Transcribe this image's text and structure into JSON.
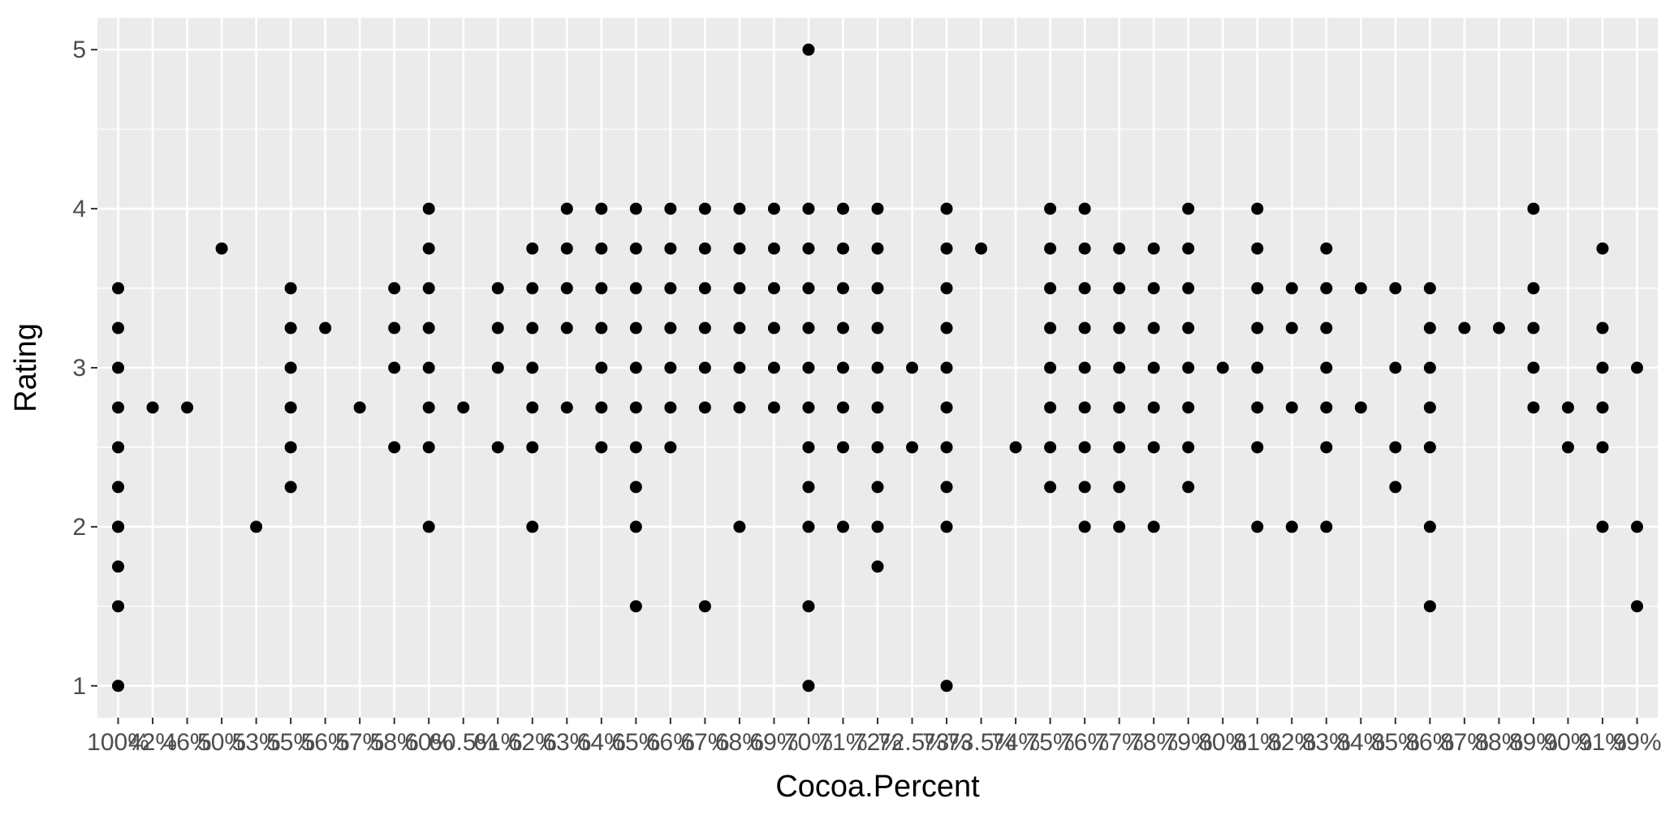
{
  "chart_data": {
    "type": "scatter",
    "title": "",
    "xlabel": "Cocoa.Percent",
    "ylabel": "Rating",
    "x_type": "categorical",
    "categories": [
      "100%",
      "42%",
      "46%",
      "50%",
      "53%",
      "55%",
      "56%",
      "57%",
      "58%",
      "60%",
      "60.5%",
      "61%",
      "62%",
      "63%",
      "64%",
      "65%",
      "66%",
      "67%",
      "68%",
      "69%",
      "70%",
      "71%",
      "72%",
      "72.5%",
      "73%",
      "73.5%",
      "74%",
      "75%",
      "76%",
      "77%",
      "78%",
      "79%",
      "80%",
      "81%",
      "82%",
      "83%",
      "84%",
      "85%",
      "86%",
      "87%",
      "88%",
      "89%",
      "90%",
      "91%",
      "99%"
    ],
    "ylim": [
      0.8,
      5.2
    ],
    "y_ticks": [
      1,
      2,
      3,
      4,
      5
    ],
    "y_tick_labels": [
      "1",
      "2",
      "3",
      "4",
      "5"
    ],
    "grid": true,
    "colors": {
      "panel": "#ebebeb",
      "grid": "#ffffff",
      "point": "#000000",
      "tick_text": "#4d4d4d"
    },
    "points": [
      [
        "100%",
        [
          1,
          1.5,
          1.75,
          2,
          2.25,
          2.5,
          2.75,
          3,
          3.5
        ]
      ],
      [
        "42%",
        [
          2.75
        ]
      ],
      [
        "46%",
        [
          2.75
        ]
      ],
      [
        "50%",
        [
          3.75
        ]
      ],
      [
        "53%",
        [
          2
        ]
      ],
      [
        "55%",
        [
          2.25,
          2.5,
          2.75,
          3,
          3.25,
          3.5
        ]
      ],
      [
        "56%",
        [
          3.25
        ]
      ],
      [
        "57%",
        [
          2.75
        ]
      ],
      [
        "58%",
        [
          2.5,
          3,
          3.25,
          3.5
        ]
      ],
      [
        "60%",
        [
          2,
          2.5,
          2.75,
          3,
          3.25,
          3.5,
          3.75,
          4
        ]
      ],
      [
        "60.5%",
        [
          2.75
        ]
      ],
      [
        "61%",
        [
          2.5,
          3,
          3.25,
          3.5
        ]
      ],
      [
        "62%",
        [
          2,
          2.5,
          2.75,
          3,
          3.25,
          3.5,
          3.75
        ]
      ],
      [
        "63%",
        [
          2.75,
          3.25,
          3.5,
          3.75,
          4
        ]
      ],
      [
        "64%",
        [
          2.5,
          2.75,
          3,
          3.25,
          3.5,
          3.75,
          4
        ]
      ],
      [
        "65%",
        [
          1.5,
          2,
          2.25,
          2.5,
          2.75,
          3,
          3.25,
          3.5,
          3.75,
          4
        ]
      ],
      [
        "66%",
        [
          2.5,
          2.75,
          3,
          3.25,
          3.5,
          3.75,
          4
        ]
      ],
      [
        "67%",
        [
          1.5,
          2.75,
          3,
          3.25,
          3.5,
          3.75,
          4
        ]
      ],
      [
        "68%",
        [
          2,
          2.75,
          3,
          3.25,
          3.5,
          3.75,
          4
        ]
      ],
      [
        "69%",
        [
          2.75,
          3,
          3.25,
          3.5,
          3.75,
          4
        ]
      ],
      [
        "70%",
        [
          1,
          1.5,
          2,
          2.25,
          2.5,
          2.75,
          3,
          3.25,
          3.5,
          3.75,
          4,
          5
        ]
      ],
      [
        "71%",
        [
          2,
          2.5,
          2.75,
          3,
          3.25,
          3.5,
          3.75,
          4
        ]
      ],
      [
        "72%",
        [
          1.75,
          2,
          2.25,
          2.5,
          2.75,
          3,
          3.25,
          3.5,
          3.75,
          4
        ]
      ],
      [
        "72.5%",
        [
          2.5,
          3
        ]
      ],
      [
        "73%",
        [
          1,
          2,
          2.25,
          2.5,
          2.75,
          3,
          3.25,
          3.5,
          3.75,
          4
        ]
      ],
      [
        "73.5%",
        [
          3.75
        ]
      ],
      [
        "74%",
        [
          2.5
        ]
      ],
      [
        "75%",
        [
          2.25,
          2.5,
          2.75,
          3,
          3.25,
          3.5,
          3.75,
          4
        ]
      ],
      [
        "76%",
        [
          2,
          2.25,
          2.5,
          2.75,
          3,
          3.25,
          3.5,
          3.75,
          4
        ]
      ],
      [
        "77%",
        [
          2,
          2.25,
          2.5,
          2.75,
          3,
          3.25,
          3.5,
          3.75
        ]
      ],
      [
        "78%",
        [
          2,
          2.5,
          2.75,
          3,
          3.25,
          3.5,
          3.75
        ]
      ],
      [
        "79%",
        [
          2.25,
          2.5,
          2.75,
          3,
          3.25,
          3.5,
          3.75,
          4
        ]
      ],
      [
        "80%",
        [
          3
        ]
      ],
      [
        "81%",
        [
          2,
          2.5,
          2.75,
          3,
          3.25,
          3.5,
          3.75,
          4
        ]
      ],
      [
        "82%",
        [
          2,
          2.75,
          3.25,
          3.5
        ]
      ],
      [
        "83%",
        [
          2,
          2.5,
          2.75,
          3,
          3.25,
          3.5,
          3.75
        ]
      ],
      [
        "84%",
        [
          2.75,
          3.5
        ]
      ],
      [
        "85%",
        [
          2.25,
          2.5,
          3,
          3.5
        ]
      ],
      [
        "86%",
        [
          1.5,
          2,
          2.5,
          2.75,
          3,
          3.25,
          3.5
        ]
      ],
      [
        "87%",
        [
          3.25
        ]
      ],
      [
        "88%",
        [
          3.25
        ]
      ],
      [
        "89%",
        [
          2.75,
          3,
          3.25,
          3.5,
          4
        ]
      ],
      [
        "90%",
        [
          2.5,
          2.75
        ]
      ],
      [
        "91%",
        [
          2,
          2.5,
          2.75,
          3,
          3.25,
          3.75
        ]
      ],
      [
        "99%",
        [
          1.5,
          2,
          3
        ]
      ],
      [
        "100% ",
        [
          2,
          3.25
        ]
      ]
    ]
  }
}
